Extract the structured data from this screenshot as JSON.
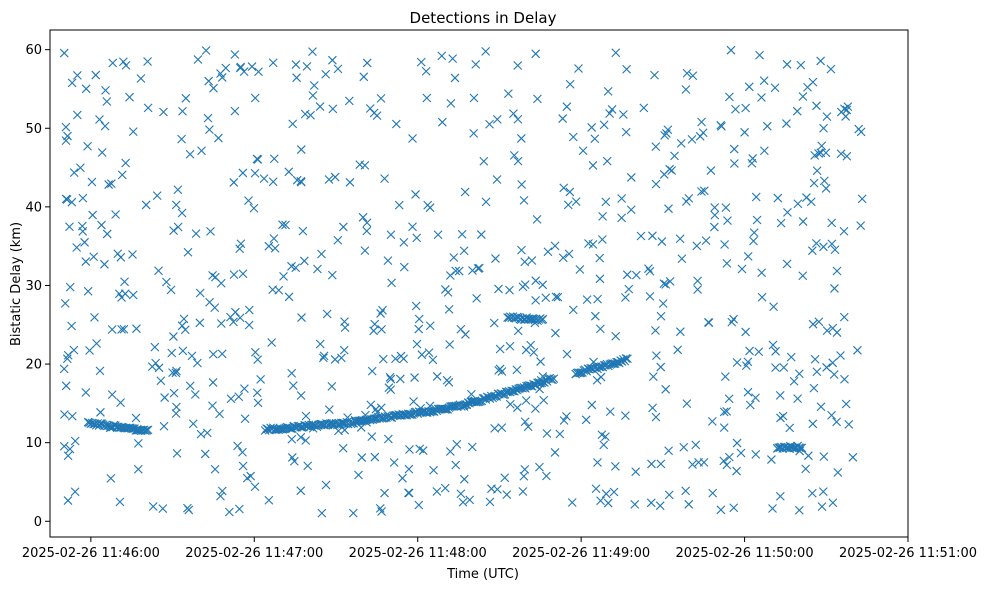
{
  "chart_data": {
    "type": "scatter",
    "title": "Detections in Delay",
    "xlabel": "Time (UTC)",
    "ylabel": "Bistatic Delay (km)",
    "marker": "x",
    "color": "#1f77b4",
    "grid": false,
    "legend": "none",
    "x_ticks": [
      "2025-02-26 11:46:00",
      "2025-02-26 11:47:00",
      "2025-02-26 11:48:00",
      "2025-02-26 11:49:00",
      "2025-02-26 11:50:00",
      "2025-02-26 11:51:00"
    ],
    "xlim": [
      "2025-02-26 11:45:45",
      "2025-02-26 11:51:00"
    ],
    "y_ticks": [
      0,
      10,
      20,
      30,
      40,
      50,
      60
    ],
    "ylim": [
      -2,
      62.5
    ],
    "tracks": [
      {
        "t_start": "2025-02-26 11:45:59",
        "t_end": "2025-02-26 11:46:21",
        "y_start": 12.5,
        "y_end": 11.5
      },
      {
        "t_start": "2025-02-26 11:47:04",
        "t_end": "2025-02-26 11:47:37",
        "y_start": 11.7,
        "y_end": 12.6
      },
      {
        "t_start": "2025-02-26 11:47:37",
        "t_end": "2025-02-26 11:48:18",
        "y_start": 12.7,
        "y_end": 14.8
      },
      {
        "t_start": "2025-02-26 11:48:18",
        "t_end": "2025-02-26 11:48:50",
        "y_start": 15.0,
        "y_end": 18.2
      },
      {
        "t_start": "2025-02-26 11:48:58",
        "t_end": "2025-02-26 11:49:17",
        "y_start": 18.9,
        "y_end": 20.6
      },
      {
        "t_start": "2025-02-26 11:48:33",
        "t_end": "2025-02-26 11:48:46",
        "y_start": 25.9,
        "y_end": 25.6
      },
      {
        "t_start": "2025-02-26 11:50:12",
        "t_end": "2025-02-26 11:50:21",
        "y_start": 9.3,
        "y_end": 9.5
      }
    ],
    "clutter": {
      "description_of_values": "scattered false detections spread uniformly over the time range and 1-60 km delay",
      "t_range": [
        "2025-02-26 11:45:50",
        "2025-02-26 11:50:45"
      ],
      "y_range": [
        1,
        60
      ],
      "count": 780
    }
  }
}
